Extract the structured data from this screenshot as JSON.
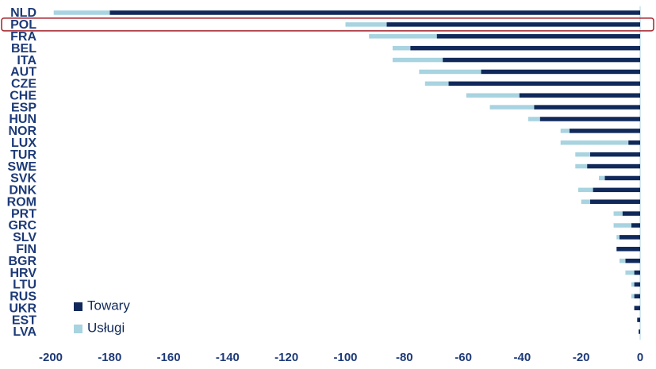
{
  "chart_data": {
    "type": "stacked-barh",
    "categories": [
      "NLD",
      "POL",
      "FRA",
      "BEL",
      "ITA",
      "AUT",
      "CZE",
      "CHE",
      "ESP",
      "HUN",
      "NOR",
      "LUX",
      "TUR",
      "SWE",
      "SVK",
      "DNK",
      "ROM",
      "PRT",
      "GRC",
      "SLV",
      "FIN",
      "BGR",
      "HRV",
      "LTU",
      "RUS",
      "UKR",
      "EST",
      "LVA"
    ],
    "series": [
      {
        "name": "Towary",
        "color": "#10295a",
        "values": [
          -180,
          -86,
          -69,
          -78,
          -67,
          -54,
          -65,
          -41,
          -36,
          -34,
          -24,
          -4,
          -17,
          -18,
          -12,
          -16,
          -17,
          -6,
          -3,
          -7,
          -8,
          -5,
          -2,
          -2,
          -2,
          -2,
          -1,
          -0.5
        ]
      },
      {
        "name": "Usługi",
        "color": "#a8d3e0",
        "values": [
          -19,
          -14,
          -23,
          -6,
          -17,
          -21,
          -8,
          -18,
          -15,
          -4,
          -3,
          -23,
          -5,
          -4,
          -2,
          -5,
          -3,
          -3,
          -6,
          -1,
          0,
          -2,
          -3,
          -1,
          -1,
          0,
          0,
          0
        ]
      }
    ],
    "xlim": [
      -200,
      0
    ],
    "xticks": [
      -200,
      -180,
      -160,
      -140,
      -120,
      -100,
      -80,
      -60,
      -40,
      -20,
      0
    ],
    "highlight": "POL"
  }
}
